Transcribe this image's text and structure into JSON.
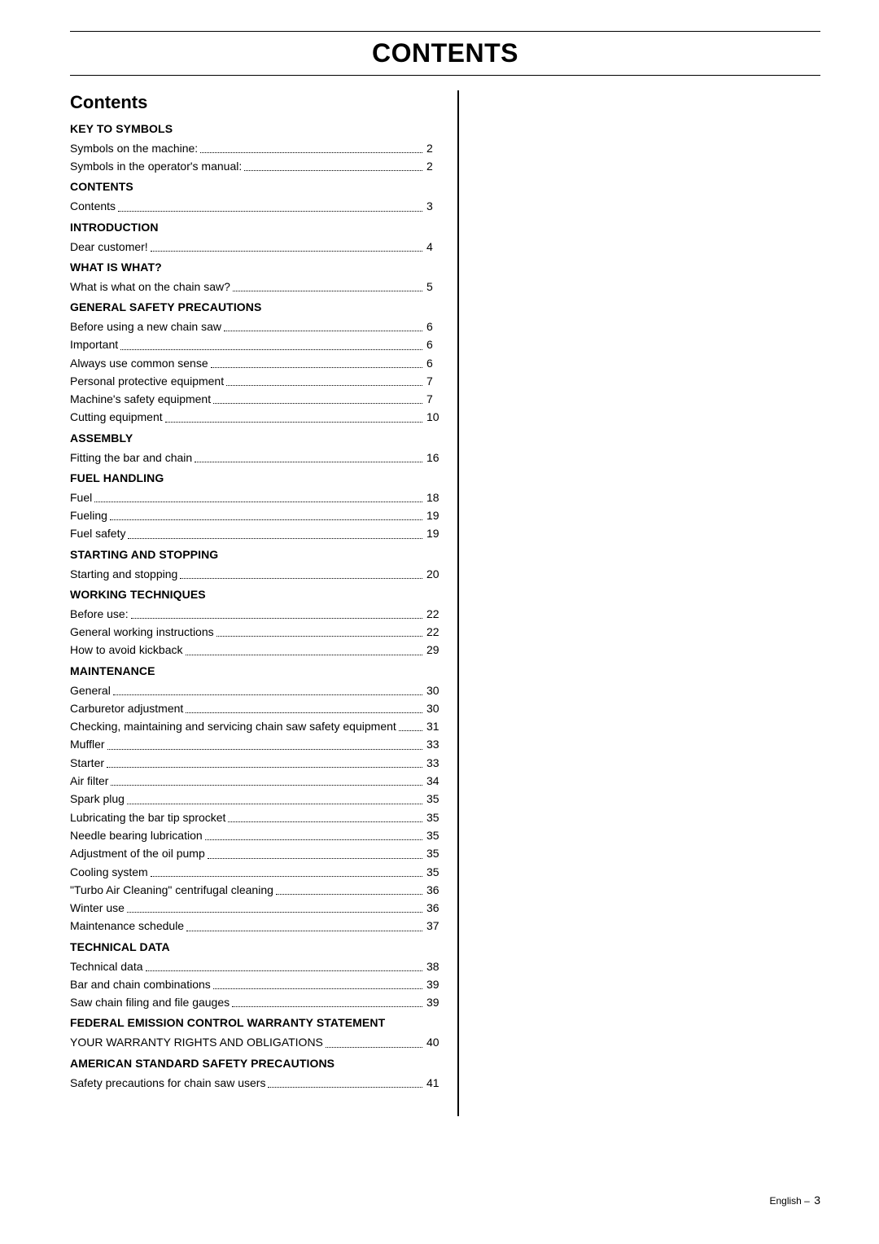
{
  "title": "CONTENTS",
  "subhead": "Contents",
  "footer": {
    "lang": "English",
    "sep": "–",
    "page": "3"
  },
  "toc": [
    {
      "type": "head",
      "text": "KEY TO SYMBOLS"
    },
    {
      "type": "item",
      "label": "Symbols on the machine:",
      "page": "2"
    },
    {
      "type": "item",
      "label": "Symbols in the operator's manual:",
      "page": "2"
    },
    {
      "type": "head",
      "text": "CONTENTS"
    },
    {
      "type": "item",
      "label": "Contents",
      "page": "3"
    },
    {
      "type": "head",
      "text": "INTRODUCTION"
    },
    {
      "type": "item",
      "label": "Dear customer!",
      "page": "4"
    },
    {
      "type": "head",
      "text": "WHAT IS WHAT?"
    },
    {
      "type": "item",
      "label": "What is what on the chain saw?",
      "page": "5"
    },
    {
      "type": "head",
      "text": "GENERAL SAFETY PRECAUTIONS"
    },
    {
      "type": "item",
      "label": "Before using a new chain saw",
      "page": "6"
    },
    {
      "type": "item",
      "label": "Important",
      "page": "6"
    },
    {
      "type": "item",
      "label": "Always use common sense",
      "page": "6"
    },
    {
      "type": "item",
      "label": "Personal protective equipment",
      "page": "7"
    },
    {
      "type": "item",
      "label": "Machine's safety equipment",
      "page": "7"
    },
    {
      "type": "item",
      "label": "Cutting equipment",
      "page": "10"
    },
    {
      "type": "head",
      "text": "ASSEMBLY"
    },
    {
      "type": "item",
      "label": "Fitting the bar and chain",
      "page": "16"
    },
    {
      "type": "head",
      "text": "FUEL HANDLING"
    },
    {
      "type": "item",
      "label": "Fuel",
      "page": "18"
    },
    {
      "type": "item",
      "label": "Fueling",
      "page": "19"
    },
    {
      "type": "item",
      "label": "Fuel safety",
      "page": "19"
    },
    {
      "type": "head",
      "text": "STARTING AND STOPPING"
    },
    {
      "type": "item",
      "label": "Starting and stopping",
      "page": "20"
    },
    {
      "type": "head",
      "text": "WORKING TECHNIQUES"
    },
    {
      "type": "item",
      "label": "Before use:",
      "page": "22"
    },
    {
      "type": "item",
      "label": "General working instructions",
      "page": "22"
    },
    {
      "type": "item",
      "label": "How to avoid kickback",
      "page": "29"
    },
    {
      "type": "head",
      "text": "MAINTENANCE"
    },
    {
      "type": "item",
      "label": "General",
      "page": "30"
    },
    {
      "type": "item",
      "label": "Carburetor adjustment",
      "page": "30"
    },
    {
      "type": "item",
      "label": "Checking, maintaining and servicing chain saw safety equipment",
      "page": "31"
    },
    {
      "type": "item",
      "label": "Muffler",
      "page": "33"
    },
    {
      "type": "item",
      "label": "Starter",
      "page": "33"
    },
    {
      "type": "item",
      "label": "Air filter",
      "page": "34"
    },
    {
      "type": "item",
      "label": "Spark plug",
      "page": "35"
    },
    {
      "type": "item",
      "label": "Lubricating the bar tip sprocket",
      "page": "35"
    },
    {
      "type": "item",
      "label": "Needle bearing lubrication",
      "page": "35"
    },
    {
      "type": "item",
      "label": "Adjustment of the oil pump",
      "page": "35"
    },
    {
      "type": "item",
      "label": "Cooling system",
      "page": "35"
    },
    {
      "type": "item",
      "label": "\"Turbo Air Cleaning\" centrifugal cleaning",
      "page": "36"
    },
    {
      "type": "item",
      "label": "Winter use",
      "page": "36"
    },
    {
      "type": "item",
      "label": "Maintenance schedule",
      "page": "37"
    },
    {
      "type": "head",
      "text": "TECHNICAL DATA"
    },
    {
      "type": "item",
      "label": "Technical data",
      "page": "38"
    },
    {
      "type": "item",
      "label": "Bar and chain combinations",
      "page": "39"
    },
    {
      "type": "item",
      "label": "Saw chain filing and file gauges",
      "page": "39"
    },
    {
      "type": "head",
      "text": "FEDERAL EMISSION CONTROL WARRANTY STATEMENT"
    },
    {
      "type": "item",
      "label": "YOUR WARRANTY RIGHTS AND OBLIGATIONS",
      "page": "40"
    },
    {
      "type": "head",
      "text": "AMERICAN STANDARD SAFETY PRECAUTIONS"
    },
    {
      "type": "item",
      "label": "Safety precautions for chain saw users",
      "page": "41"
    }
  ]
}
